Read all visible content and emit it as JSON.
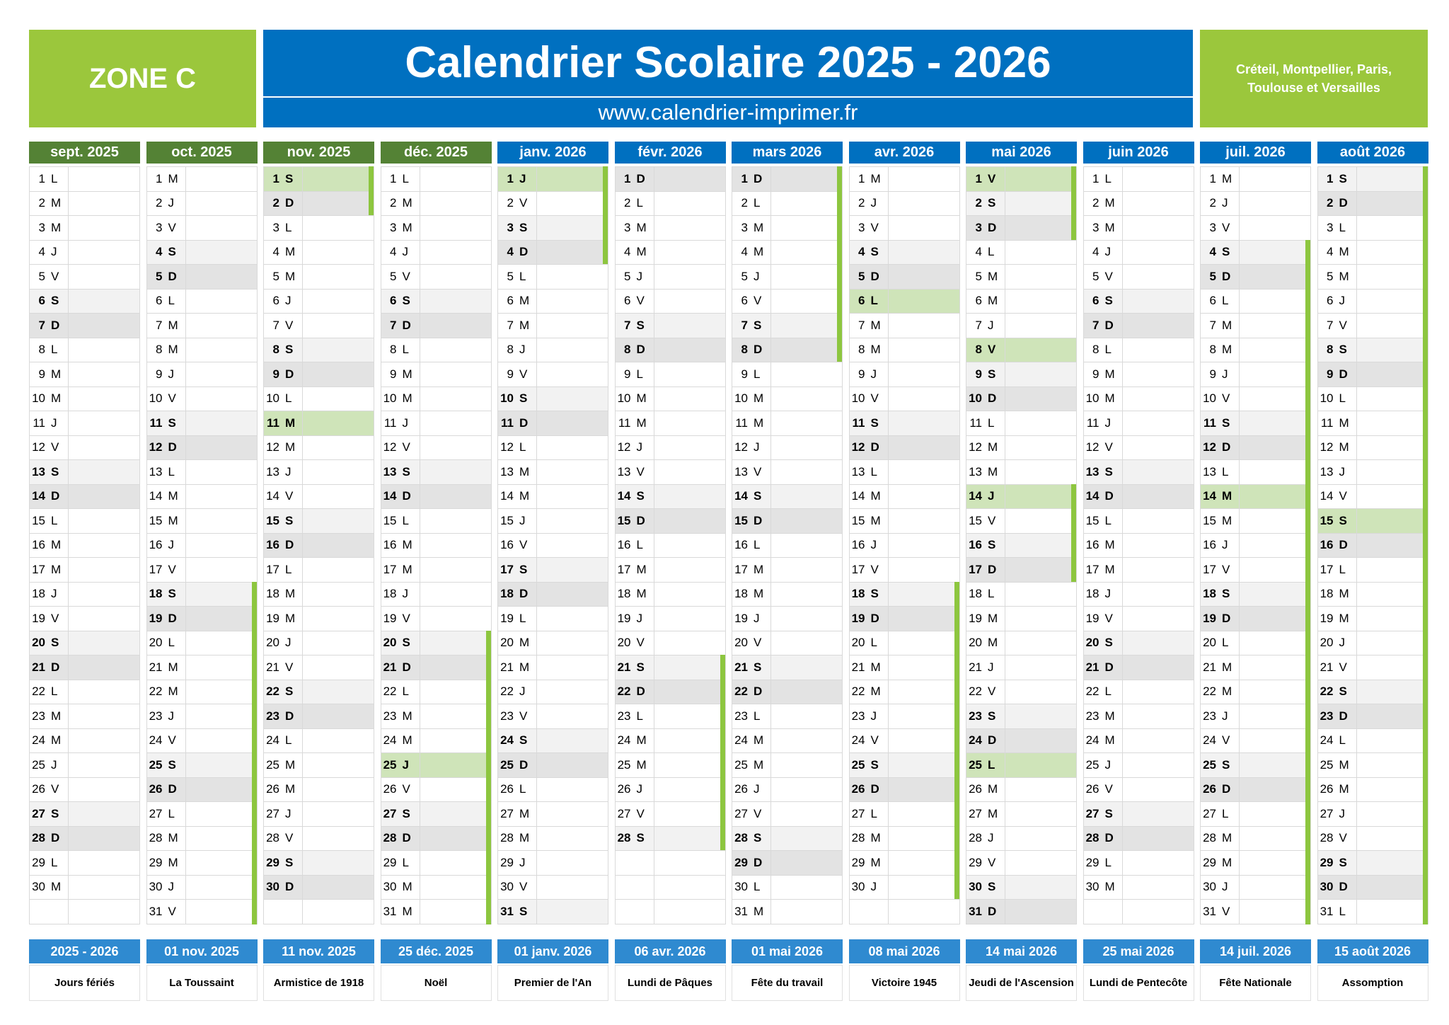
{
  "header": {
    "zone": "ZONE C",
    "title": "Calendrier Scolaire 2025 - 2026",
    "url": "www.calendrier-imprimer.fr",
    "cities": [
      "Créteil, Montpellier, Paris,",
      "Toulouse et Versailles"
    ]
  },
  "style": {
    "green": "#9bc73c",
    "blue": "#0070c0",
    "holiday": "#cfe4b9",
    "vacation": "#8dc63f",
    "footer": "#2f8ad0",
    "shade": {
      "S": "#f2f2f2",
      "D": "#e3e3e3"
    }
  },
  "months": [
    {
      "name": "sept. 2025",
      "color": "#548235",
      "days": [
        1,
        2,
        3,
        4,
        5,
        6,
        7,
        8,
        9,
        10,
        11,
        12,
        13,
        14,
        15,
        16,
        17,
        18,
        19,
        20,
        21,
        22,
        23,
        24,
        25,
        26,
        27,
        28,
        29,
        30
      ],
      "weekdays": [
        "L",
        "M",
        "M",
        "J",
        "V",
        "S",
        "D",
        "L",
        "M",
        "M",
        "J",
        "V",
        "S",
        "D",
        "L",
        "M",
        "M",
        "J",
        "V",
        "S",
        "D",
        "L",
        "M",
        "M",
        "J",
        "V",
        "S",
        "D",
        "L",
        "M"
      ],
      "holidays": [],
      "vacation": []
    },
    {
      "name": "oct. 2025",
      "color": "#548235",
      "days": [
        1,
        2,
        3,
        4,
        5,
        6,
        7,
        8,
        9,
        10,
        11,
        12,
        13,
        14,
        15,
        16,
        17,
        18,
        19,
        20,
        21,
        22,
        23,
        24,
        25,
        26,
        27,
        28,
        29,
        30,
        31
      ],
      "weekdays": [
        "M",
        "J",
        "V",
        "S",
        "D",
        "L",
        "M",
        "M",
        "J",
        "V",
        "S",
        "D",
        "L",
        "M",
        "M",
        "J",
        "V",
        "S",
        "D",
        "L",
        "M",
        "M",
        "J",
        "V",
        "S",
        "D",
        "L",
        "M",
        "M",
        "J",
        "V"
      ],
      "holidays": [],
      "vacation": [
        [
          18,
          31
        ]
      ]
    },
    {
      "name": "nov. 2025",
      "color": "#548235",
      "days": [
        1,
        2,
        3,
        4,
        5,
        6,
        7,
        8,
        9,
        10,
        11,
        12,
        13,
        14,
        15,
        16,
        17,
        18,
        19,
        20,
        21,
        22,
        23,
        24,
        25,
        26,
        27,
        28,
        29,
        30
      ],
      "weekdays": [
        "S",
        "D",
        "L",
        "M",
        "M",
        "J",
        "V",
        "S",
        "D",
        "L",
        "M",
        "M",
        "J",
        "V",
        "S",
        "D",
        "L",
        "M",
        "M",
        "J",
        "V",
        "S",
        "D",
        "L",
        "M",
        "M",
        "J",
        "V",
        "S",
        "D"
      ],
      "holidays": [
        1,
        11
      ],
      "vacation": [
        [
          1,
          2
        ]
      ]
    },
    {
      "name": "déc. 2025",
      "color": "#548235",
      "days": [
        1,
        2,
        3,
        4,
        5,
        6,
        7,
        8,
        9,
        10,
        11,
        12,
        13,
        14,
        15,
        16,
        17,
        18,
        19,
        20,
        21,
        22,
        23,
        24,
        25,
        26,
        27,
        28,
        29,
        30,
        31
      ],
      "weekdays": [
        "L",
        "M",
        "M",
        "J",
        "V",
        "S",
        "D",
        "L",
        "M",
        "M",
        "J",
        "V",
        "S",
        "D",
        "L",
        "M",
        "M",
        "J",
        "V",
        "S",
        "D",
        "L",
        "M",
        "M",
        "J",
        "V",
        "S",
        "D",
        "L",
        "M",
        "M"
      ],
      "holidays": [
        25
      ],
      "vacation": [
        [
          20,
          31
        ]
      ]
    },
    {
      "name": "janv. 2026",
      "color": "#0070c0",
      "days": [
        1,
        2,
        3,
        4,
        5,
        6,
        7,
        8,
        9,
        10,
        11,
        12,
        13,
        14,
        15,
        16,
        17,
        18,
        19,
        20,
        21,
        22,
        23,
        24,
        25,
        26,
        27,
        28,
        29,
        30,
        31
      ],
      "weekdays": [
        "J",
        "V",
        "S",
        "D",
        "L",
        "M",
        "M",
        "J",
        "V",
        "S",
        "D",
        "L",
        "M",
        "M",
        "J",
        "V",
        "S",
        "D",
        "L",
        "M",
        "M",
        "J",
        "V",
        "S",
        "D",
        "L",
        "M",
        "M",
        "J",
        "V",
        "S"
      ],
      "holidays": [
        1
      ],
      "vacation": [
        [
          1,
          4
        ]
      ]
    },
    {
      "name": "févr. 2026",
      "color": "#0070c0",
      "days": [
        1,
        2,
        3,
        4,
        5,
        6,
        7,
        8,
        9,
        10,
        11,
        12,
        13,
        14,
        15,
        16,
        17,
        18,
        19,
        20,
        21,
        22,
        23,
        24,
        25,
        26,
        27,
        28
      ],
      "weekdays": [
        "D",
        "L",
        "M",
        "M",
        "J",
        "V",
        "S",
        "D",
        "L",
        "M",
        "M",
        "J",
        "V",
        "S",
        "D",
        "L",
        "M",
        "M",
        "J",
        "V",
        "S",
        "D",
        "L",
        "M",
        "M",
        "J",
        "V",
        "S"
      ],
      "holidays": [],
      "vacation": [
        [
          21,
          28
        ]
      ]
    },
    {
      "name": "mars 2026",
      "color": "#0070c0",
      "days": [
        1,
        2,
        3,
        4,
        5,
        6,
        7,
        8,
        9,
        10,
        11,
        12,
        13,
        14,
        15,
        16,
        17,
        18,
        19,
        20,
        21,
        22,
        23,
        24,
        25,
        26,
        27,
        28,
        29,
        30,
        31
      ],
      "weekdays": [
        "D",
        "L",
        "M",
        "M",
        "J",
        "V",
        "S",
        "D",
        "L",
        "M",
        "M",
        "J",
        "V",
        "S",
        "D",
        "L",
        "M",
        "M",
        "J",
        "V",
        "S",
        "D",
        "L",
        "M",
        "M",
        "J",
        "V",
        "S",
        "D",
        "L",
        "M"
      ],
      "holidays": [],
      "vacation": [
        [
          1,
          8
        ]
      ]
    },
    {
      "name": "avr. 2026",
      "color": "#0070c0",
      "days": [
        1,
        2,
        3,
        4,
        5,
        6,
        7,
        8,
        9,
        10,
        11,
        12,
        13,
        14,
        15,
        16,
        17,
        18,
        19,
        20,
        21,
        22,
        23,
        24,
        25,
        26,
        27,
        28,
        29,
        30
      ],
      "weekdays": [
        "M",
        "J",
        "V",
        "S",
        "D",
        "L",
        "M",
        "M",
        "J",
        "V",
        "S",
        "D",
        "L",
        "M",
        "M",
        "J",
        "V",
        "S",
        "D",
        "L",
        "M",
        "M",
        "J",
        "V",
        "S",
        "D",
        "L",
        "M",
        "M",
        "J"
      ],
      "holidays": [
        6
      ],
      "vacation": [
        [
          18,
          30
        ]
      ]
    },
    {
      "name": "mai 2026",
      "color": "#0070c0",
      "days": [
        1,
        2,
        3,
        4,
        5,
        6,
        7,
        8,
        9,
        10,
        11,
        12,
        13,
        14,
        15,
        16,
        17,
        18,
        19,
        20,
        21,
        22,
        23,
        24,
        25,
        26,
        27,
        28,
        29,
        30,
        31
      ],
      "weekdays": [
        "V",
        "S",
        "D",
        "L",
        "M",
        "M",
        "J",
        "V",
        "S",
        "D",
        "L",
        "M",
        "M",
        "J",
        "V",
        "S",
        "D",
        "L",
        "M",
        "M",
        "J",
        "V",
        "S",
        "D",
        "L",
        "M",
        "M",
        "J",
        "V",
        "S",
        "D"
      ],
      "holidays": [
        1,
        8,
        14,
        25
      ],
      "vacation": [
        [
          1,
          3
        ],
        [
          14,
          17
        ]
      ]
    },
    {
      "name": "juin 2026",
      "color": "#0070c0",
      "days": [
        1,
        2,
        3,
        4,
        5,
        6,
        7,
        8,
        9,
        10,
        11,
        12,
        13,
        14,
        15,
        16,
        17,
        18,
        19,
        20,
        21,
        22,
        23,
        24,
        25,
        26,
        27,
        28,
        29,
        30
      ],
      "weekdays": [
        "L",
        "M",
        "M",
        "J",
        "V",
        "S",
        "D",
        "L",
        "M",
        "M",
        "J",
        "V",
        "S",
        "D",
        "L",
        "M",
        "M",
        "J",
        "V",
        "S",
        "D",
        "L",
        "M",
        "M",
        "J",
        "V",
        "S",
        "D",
        "L",
        "M"
      ],
      "holidays": [],
      "vacation": []
    },
    {
      "name": "juil. 2026",
      "color": "#0070c0",
      "days": [
        1,
        2,
        3,
        4,
        5,
        6,
        7,
        8,
        9,
        10,
        11,
        12,
        13,
        14,
        15,
        16,
        17,
        18,
        19,
        20,
        21,
        22,
        23,
        24,
        25,
        26,
        27,
        28,
        29,
        30,
        31
      ],
      "weekdays": [
        "M",
        "J",
        "V",
        "S",
        "D",
        "L",
        "M",
        "M",
        "J",
        "V",
        "S",
        "D",
        "L",
        "M",
        "M",
        "J",
        "V",
        "S",
        "D",
        "L",
        "M",
        "M",
        "J",
        "V",
        "S",
        "D",
        "L",
        "M",
        "M",
        "J",
        "V"
      ],
      "holidays": [
        14
      ],
      "vacation": [
        [
          4,
          31
        ]
      ]
    },
    {
      "name": "août 2026",
      "color": "#0070c0",
      "days": [
        1,
        2,
        3,
        4,
        5,
        6,
        7,
        8,
        9,
        10,
        11,
        12,
        13,
        14,
        15,
        16,
        17,
        18,
        19,
        20,
        21,
        22,
        23,
        24,
        25,
        26,
        27,
        28,
        29,
        30,
        31
      ],
      "weekdays": [
        "S",
        "D",
        "L",
        "M",
        "M",
        "J",
        "V",
        "S",
        "D",
        "L",
        "M",
        "M",
        "J",
        "V",
        "S",
        "D",
        "L",
        "M",
        "M",
        "J",
        "V",
        "S",
        "D",
        "L",
        "M",
        "M",
        "J",
        "V",
        "S",
        "D",
        "L"
      ],
      "holidays": [
        15
      ],
      "vacation": [
        [
          1,
          31
        ]
      ]
    }
  ],
  "footer": [
    {
      "date": "2025 - 2026",
      "label": "Jours fériés"
    },
    {
      "date": "01 nov. 2025",
      "label": "La Toussaint"
    },
    {
      "date": "11 nov. 2025",
      "label": "Armistice de 1918"
    },
    {
      "date": "25 déc. 2025",
      "label": "Noël"
    },
    {
      "date": "01 janv. 2026",
      "label": "Premier de l'An"
    },
    {
      "date": "06 avr. 2026",
      "label": "Lundi de Pâques"
    },
    {
      "date": "01 mai 2026",
      "label": "Fête du travail"
    },
    {
      "date": "08 mai 2026",
      "label": "Victoire 1945"
    },
    {
      "date": "14 mai 2026",
      "label": "Jeudi de l'Ascension"
    },
    {
      "date": "25 mai 2026",
      "label": "Lundi de Pentecôte"
    },
    {
      "date": "14 juil. 2026",
      "label": "Fête Nationale"
    },
    {
      "date": "15 août 2026",
      "label": "Assomption"
    }
  ]
}
